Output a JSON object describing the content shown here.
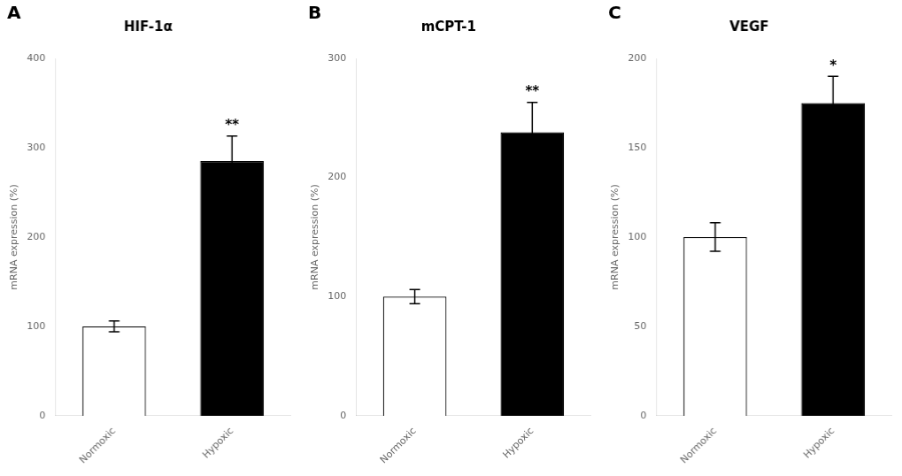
{
  "chart_data": [
    {
      "type": "bar",
      "label": "A",
      "title": "HIF-1α",
      "ylabel": "mRNA expression (%)",
      "categories": [
        "Normoxic",
        "Hypoxic"
      ],
      "values": [
        100,
        285
      ],
      "errors": [
        6,
        28
      ],
      "colors": [
        "#ffffff",
        "#000000"
      ],
      "significance": [
        null,
        "**"
      ],
      "ylim": [
        0,
        400
      ],
      "yticks": [
        0,
        100,
        200,
        300,
        400
      ],
      "grid": false
    },
    {
      "type": "bar",
      "label": "B",
      "title": "mCPT-1",
      "ylabel": "mRNA expression (%)",
      "categories": [
        "Normoxic",
        "Hypoxic"
      ],
      "values": [
        100,
        238
      ],
      "errors": [
        6,
        25
      ],
      "colors": [
        "#ffffff",
        "#000000"
      ],
      "significance": [
        null,
        "**"
      ],
      "ylim": [
        0,
        300
      ],
      "yticks": [
        0,
        100,
        200,
        300
      ],
      "grid": false
    },
    {
      "type": "bar",
      "label": "C",
      "title": "VEGF",
      "ylabel": "mRNA expression (%)",
      "categories": [
        "Normoxic",
        "Hypoxic"
      ],
      "values": [
        100,
        175
      ],
      "errors": [
        8,
        15
      ],
      "colors": [
        "#ffffff",
        "#000000"
      ],
      "significance": [
        null,
        "*"
      ],
      "ylim": [
        0,
        200
      ],
      "yticks": [
        0,
        50,
        100,
        150,
        200
      ],
      "grid": false
    }
  ]
}
